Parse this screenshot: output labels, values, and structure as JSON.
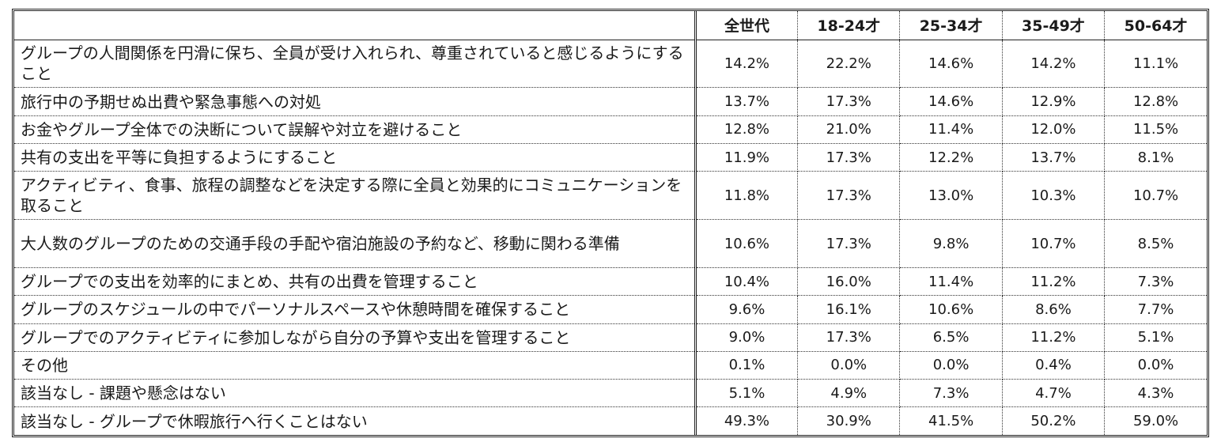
{
  "table": {
    "corner_label": "",
    "headers": [
      "全世代",
      "18-24才",
      "25-34才",
      "35-49才",
      "50-64才"
    ],
    "rows": [
      {
        "label": "グループの人間関係を円滑に保ち、全員が受け入れられ、尊重されていると感じるようにすること",
        "values": [
          "14.2%",
          "22.2%",
          "14.6%",
          "14.2%",
          "11.1%"
        ]
      },
      {
        "label": "旅行中の予期せぬ出費や緊急事態への対処",
        "values": [
          "13.7%",
          "17.3%",
          "14.6%",
          "12.9%",
          "12.8%"
        ]
      },
      {
        "label": "お金やグループ全体での決断について誤解や対立を避けること",
        "values": [
          "12.8%",
          "21.0%",
          "11.4%",
          "12.0%",
          "11.5%"
        ]
      },
      {
        "label": "共有の支出を平等に負担するようにすること",
        "values": [
          "11.9%",
          "17.3%",
          "12.2%",
          "13.7%",
          "8.1%"
        ]
      },
      {
        "label": "アクティビティ、食事、旅程の調整などを決定する際に全員と効果的にコミュニケーションを取ること",
        "values": [
          "11.8%",
          "17.3%",
          "13.0%",
          "10.3%",
          "10.7%"
        ]
      },
      {
        "label": "大人数のグループのための交通手段の手配や宿泊施設の予約など、移動に関わる準備",
        "values": [
          "10.6%",
          "17.3%",
          "9.8%",
          "10.7%",
          "8.5%"
        ]
      },
      {
        "label": "グループでの支出を効率的にまとめ、共有の出費を管理すること",
        "values": [
          "10.4%",
          "16.0%",
          "11.4%",
          "11.2%",
          "7.3%"
        ]
      },
      {
        "label": "グループのスケジュールの中でパーソナルスペースや休憩時間を確保すること",
        "values": [
          "9.6%",
          "16.1%",
          "10.6%",
          "8.6%",
          "7.7%"
        ]
      },
      {
        "label": "グループでのアクティビティに参加しながら自分の予算や支出を管理すること",
        "values": [
          "9.0%",
          "17.3%",
          "6.5%",
          "11.2%",
          "5.1%"
        ]
      },
      {
        "label": "その他",
        "values": [
          "0.1%",
          "0.0%",
          "0.0%",
          "0.4%",
          "0.0%"
        ]
      },
      {
        "label": "該当なし - 課題や懸念はない",
        "values": [
          "5.1%",
          "4.9%",
          "7.3%",
          "4.7%",
          "4.3%"
        ]
      },
      {
        "label": "該当なし - グループで休暇旅行へ行くことはない",
        "values": [
          "49.3%",
          "30.9%",
          "41.5%",
          "50.2%",
          "59.0%"
        ]
      }
    ]
  }
}
